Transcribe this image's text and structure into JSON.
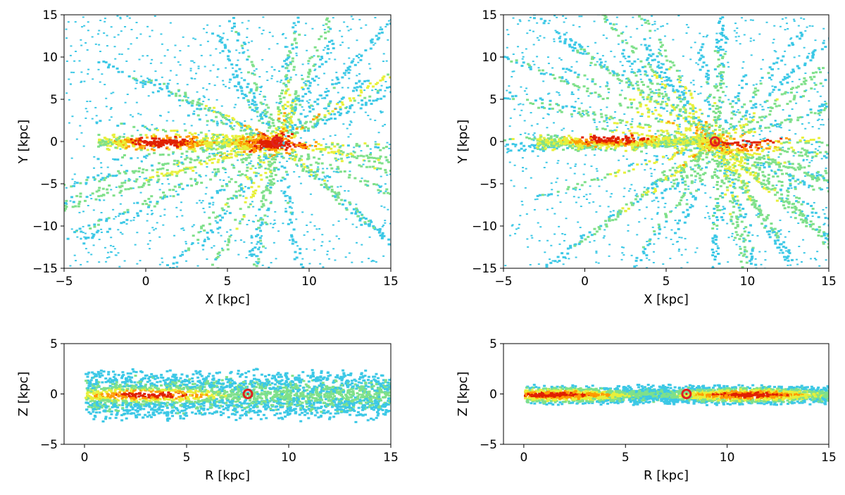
{
  "chart_data": [
    {
      "type": "heatmap",
      "id": "xy-left",
      "title": "",
      "xlabel": "X [kpc]",
      "ylabel": "Y [kpc]",
      "xlim": [
        -5,
        15
      ],
      "ylim": [
        -15,
        15
      ],
      "xticks": [
        -5,
        0,
        5,
        10,
        15
      ],
      "yticks": [
        -15,
        -10,
        -5,
        0,
        5,
        10,
        15
      ],
      "sun": {
        "x": 8,
        "y": 0
      },
      "density": {
        "rays": 46,
        "hot_spots": [
          {
            "x": 1,
            "y": 0
          },
          {
            "x": 8,
            "y": 0
          }
        ],
        "seed": 11
      }
    },
    {
      "type": "heatmap",
      "id": "xy-right",
      "title": "",
      "xlabel": "X [kpc]",
      "ylabel": "Y [kpc]",
      "xlim": [
        -5,
        15
      ],
      "ylim": [
        -15,
        15
      ],
      "xticks": [
        -5,
        0,
        5,
        10,
        15
      ],
      "yticks": [
        -15,
        -10,
        -5,
        0,
        5,
        10,
        15
      ],
      "sun": {
        "x": 8,
        "y": 0
      },
      "density": {
        "rays": 60,
        "hot_spots": [
          {
            "x": 1.5,
            "y": 0.5
          },
          {
            "x": 10,
            "y": 0
          }
        ],
        "seed": 23
      }
    },
    {
      "type": "heatmap",
      "id": "rz-left",
      "title": "",
      "xlabel": "R [kpc]",
      "ylabel": "Z [kpc]",
      "xlim": [
        -1,
        15
      ],
      "ylim": [
        -5,
        5
      ],
      "xticks": [
        0,
        5,
        10,
        15
      ],
      "yticks": [
        -5,
        0,
        5
      ],
      "sun": {
        "x": 8,
        "y": 0
      },
      "density": {
        "scale_height": 1.3,
        "hot_spots": [
          {
            "x": 3,
            "y": 0
          }
        ],
        "seed": 37
      }
    },
    {
      "type": "heatmap",
      "id": "rz-right",
      "title": "",
      "xlabel": "R [kpc]",
      "ylabel": "Z [kpc]",
      "xlim": [
        -1,
        15
      ],
      "ylim": [
        -5,
        5
      ],
      "xticks": [
        0,
        5,
        10,
        15
      ],
      "yticks": [
        -5,
        0,
        5
      ],
      "sun": {
        "x": 8,
        "y": 0
      },
      "density": {
        "scale_height": 0.5,
        "hot_spots": [
          {
            "x": 1.5,
            "y": 0
          },
          {
            "x": 11,
            "y": 0
          }
        ],
        "seed": 53
      }
    }
  ],
  "colors": {
    "low": "#3cc8e6",
    "mid_low": "#7fe08a",
    "mid": "#e8f03a",
    "high": "#ff9a00",
    "peak": "#e02000",
    "sun_marker": "#e02020"
  }
}
